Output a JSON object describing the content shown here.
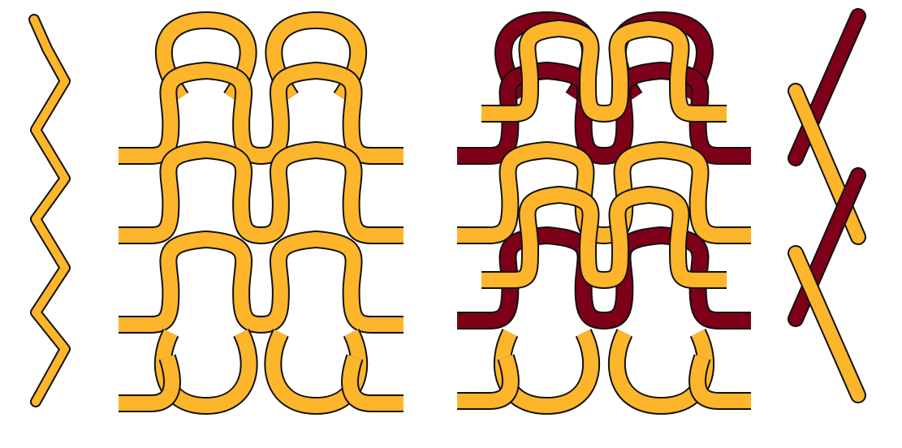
{
  "colors": {
    "gold": "#FDB52B",
    "maroon": "#7E0018",
    "edge": "#111111",
    "background": "#FFFFFF"
  },
  "panels": [
    {
      "id": "single-yarn-side-view",
      "yarn_colors": [
        "gold"
      ]
    },
    {
      "id": "single-yarn-front-view",
      "yarn_colors": [
        "gold"
      ],
      "loop_columns": 2,
      "courses": 4
    },
    {
      "id": "two-yarn-front-view",
      "yarn_colors": [
        "maroon",
        "gold"
      ],
      "loop_columns": 2,
      "courses": 4
    },
    {
      "id": "two-yarn-side-view",
      "yarn_colors": [
        "maroon",
        "gold"
      ]
    }
  ]
}
